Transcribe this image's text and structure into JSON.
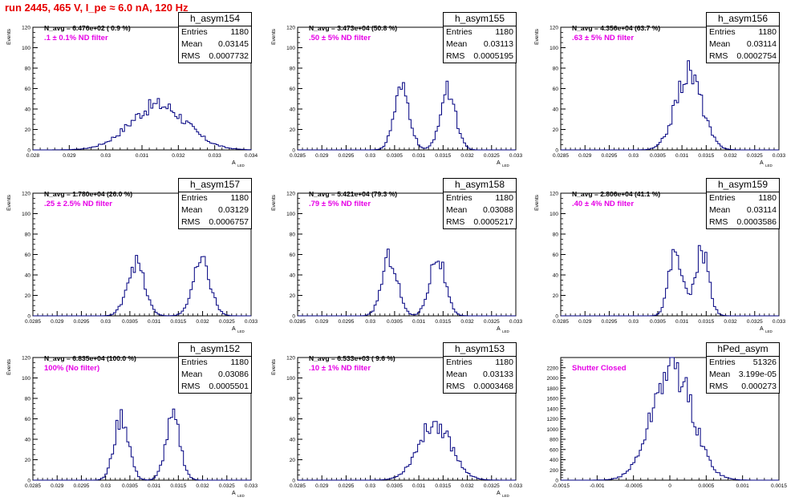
{
  "page_title": "run 2445,   465 V, I_pe ≈ 6.0 nA, 120 Hz",
  "colors": {
    "title": "#e60000",
    "line": "#000080",
    "annotation": "#e600e6",
    "axis": "#000000"
  },
  "chart_data": [
    {
      "type": "histogram",
      "name": "h_asym154",
      "stats": {
        "Entries": "1180",
        "Mean": "0.03145",
        "RMS": "0.0007732"
      },
      "n_avg_label": "N_avg = 6.476e+02 ( 0.9 %)",
      "filter_label": ".1 ± 0.1% ND filter",
      "xlabel": "A",
      "xlabel_sub": "LED",
      "ylabel": "Events",
      "xlim": [
        0.028,
        0.034
      ],
      "ylim": [
        0,
        120
      ],
      "xticks": [
        0.028,
        0.029,
        0.03,
        0.031,
        0.032,
        0.033,
        0.034
      ],
      "xtick_labels": [
        "0.028",
        "0.029",
        "0.03",
        "0.031",
        "0.032",
        "0.033",
        "0.034"
      ],
      "yticks": [
        0,
        20,
        40,
        60,
        80,
        100,
        120
      ],
      "ytick_labels": [
        "0",
        "20",
        "40",
        "60",
        "80",
        "100",
        "120"
      ],
      "peaks": [
        {
          "mean": 0.03145,
          "sigma": 0.00077,
          "height": 44
        }
      ]
    },
    {
      "type": "histogram",
      "name": "h_asym155",
      "stats": {
        "Entries": "1180",
        "Mean": "0.03113",
        "RMS": "0.0005195"
      },
      "n_avg_label": "N_avg = 3.473e+04 (50.8 %)",
      "filter_label": ".50 ± 5% ND filter",
      "xlabel": "A",
      "xlabel_sub": "LED",
      "ylabel": "Events",
      "xlim": [
        0.0285,
        0.033
      ],
      "ylim": [
        0,
        120
      ],
      "xticks": [
        0.0285,
        0.029,
        0.0295,
        0.03,
        0.0305,
        0.031,
        0.0315,
        0.032,
        0.0325,
        0.033
      ],
      "xtick_labels": [
        "0.0285",
        "0.029",
        "0.0295",
        "0.03",
        "0.0305",
        "0.031",
        "0.0315",
        "0.032",
        "0.0325",
        "0.033"
      ],
      "yticks": [
        0,
        20,
        40,
        60,
        80,
        100,
        120
      ],
      "ytick_labels": [
        "0",
        "20",
        "40",
        "60",
        "80",
        "100",
        "120"
      ],
      "peaks": [
        {
          "mean": 0.03065,
          "sigma": 0.00016,
          "height": 58
        },
        {
          "mean": 0.0316,
          "sigma": 0.00016,
          "height": 58
        }
      ]
    },
    {
      "type": "histogram",
      "name": "h_asym156",
      "stats": {
        "Entries": "1180",
        "Mean": "0.03114",
        "RMS": "0.0002754"
      },
      "n_avg_label": "N_avg = 4.356e+04 (63.7 %)",
      "filter_label": ".63 ± 5% ND filter",
      "xlabel": "A",
      "xlabel_sub": "LED",
      "ylabel": "Events",
      "xlim": [
        0.0285,
        0.033
      ],
      "ylim": [
        0,
        120
      ],
      "xticks": [
        0.0285,
        0.029,
        0.0295,
        0.03,
        0.0305,
        0.031,
        0.0315,
        0.032,
        0.0325,
        0.033
      ],
      "xtick_labels": [
        "0.0285",
        "0.029",
        "0.0295",
        "0.03",
        "0.0305",
        "0.031",
        "0.0315",
        "0.032",
        "0.0325",
        "0.033"
      ],
      "yticks": [
        0,
        20,
        40,
        60,
        80,
        100,
        120
      ],
      "ytick_labels": [
        "0",
        "20",
        "40",
        "60",
        "80",
        "100",
        "120"
      ],
      "peaks": [
        {
          "mean": 0.03114,
          "sigma": 0.00027,
          "height": 76
        }
      ]
    },
    {
      "type": "histogram",
      "name": "h_asym157",
      "stats": {
        "Entries": "1180",
        "Mean": "0.03129",
        "RMS": "0.0006757"
      },
      "n_avg_label": "N_avg = 1.780e+04 (26.0 %)",
      "filter_label": ".25 ± 2.5% ND filter",
      "xlabel": "A",
      "xlabel_sub": "LED",
      "ylabel": "Events",
      "xlim": [
        0.0285,
        0.033
      ],
      "ylim": [
        0,
        120
      ],
      "xticks": [
        0.0285,
        0.029,
        0.0295,
        0.03,
        0.0305,
        0.031,
        0.0315,
        0.032,
        0.0325,
        0.033
      ],
      "xtick_labels": [
        "0.0285",
        "0.029",
        "0.0295",
        "0.03",
        "0.0305",
        "0.031",
        "0.0315",
        "0.032",
        "0.0325",
        "0.033"
      ],
      "yticks": [
        0,
        20,
        40,
        60,
        80,
        100,
        120
      ],
      "ytick_labels": [
        "0",
        "20",
        "40",
        "60",
        "80",
        "100",
        "120"
      ],
      "peaks": [
        {
          "mean": 0.03062,
          "sigma": 0.00018,
          "height": 52
        },
        {
          "mean": 0.03198,
          "sigma": 0.00018,
          "height": 52
        }
      ]
    },
    {
      "type": "histogram",
      "name": "h_asym158",
      "stats": {
        "Entries": "1180",
        "Mean": "0.03088",
        "RMS": "0.0005217"
      },
      "n_avg_label": "N_avg = 5.421e+04 (79.3 %)",
      "filter_label": ".79 ± 5% ND filter",
      "xlabel": "A",
      "xlabel_sub": "LED",
      "ylabel": "Events",
      "xlim": [
        0.0285,
        0.033
      ],
      "ylim": [
        0,
        120
      ],
      "xticks": [
        0.0285,
        0.029,
        0.0295,
        0.03,
        0.0305,
        0.031,
        0.0315,
        0.032,
        0.0325,
        0.033
      ],
      "xtick_labels": [
        "0.0285",
        "0.029",
        "0.0295",
        "0.03",
        "0.0305",
        "0.031",
        "0.0315",
        "0.032",
        "0.0325",
        "0.033"
      ],
      "yticks": [
        0,
        20,
        40,
        60,
        80,
        100,
        120
      ],
      "ytick_labels": [
        "0",
        "20",
        "40",
        "60",
        "80",
        "100",
        "120"
      ],
      "peaks": [
        {
          "mean": 0.0304,
          "sigma": 0.00016,
          "height": 58
        },
        {
          "mean": 0.03138,
          "sigma": 0.00016,
          "height": 58
        }
      ]
    },
    {
      "type": "histogram",
      "name": "h_asym159",
      "stats": {
        "Entries": "1180",
        "Mean": "0.03114",
        "RMS": "0.0003586"
      },
      "n_avg_label": "N_avg = 2.806e+04 (41.1 %)",
      "filter_label": ".40 ± 4% ND filter",
      "xlabel": "A",
      "xlabel_sub": "LED",
      "ylabel": "Events",
      "xlim": [
        0.0285,
        0.033
      ],
      "ylim": [
        0,
        120
      ],
      "xticks": [
        0.0285,
        0.029,
        0.0295,
        0.03,
        0.0305,
        0.031,
        0.0315,
        0.032,
        0.0325,
        0.033
      ],
      "xtick_labels": [
        "0.0285",
        "0.029",
        "0.0295",
        "0.03",
        "0.0305",
        "0.031",
        "0.0315",
        "0.032",
        "0.0325",
        "0.033"
      ],
      "yticks": [
        0,
        20,
        40,
        60,
        80,
        100,
        120
      ],
      "ytick_labels": [
        "0",
        "20",
        "40",
        "60",
        "80",
        "100",
        "120"
      ],
      "peaks": [
        {
          "mean": 0.03087,
          "sigma": 0.00014,
          "height": 64
        },
        {
          "mean": 0.03141,
          "sigma": 0.00014,
          "height": 64
        }
      ]
    },
    {
      "type": "histogram",
      "name": "h_asym152",
      "stats": {
        "Entries": "1180",
        "Mean": "0.03086",
        "RMS": "0.0005501"
      },
      "n_avg_label": "N_avg = 6.835e+04 (100.0 %)",
      "filter_label": "100% (No filter)",
      "xlabel": "A",
      "xlabel_sub": "LED",
      "ylabel": "Events",
      "xlim": [
        0.0285,
        0.033
      ],
      "ylim": [
        0,
        120
      ],
      "xticks": [
        0.0285,
        0.029,
        0.0295,
        0.03,
        0.0305,
        0.031,
        0.0315,
        0.032,
        0.0325,
        0.033
      ],
      "xtick_labels": [
        "0.0285",
        "0.029",
        "0.0295",
        "0.03",
        "0.0305",
        "0.031",
        "0.0315",
        "0.032",
        "0.0325",
        "0.033"
      ],
      "yticks": [
        0,
        20,
        40,
        60,
        80,
        100,
        120
      ],
      "ytick_labels": [
        "0",
        "20",
        "40",
        "60",
        "80",
        "100",
        "120"
      ],
      "peaks": [
        {
          "mean": 0.03033,
          "sigma": 0.00015,
          "height": 62
        },
        {
          "mean": 0.03139,
          "sigma": 0.00015,
          "height": 60
        }
      ]
    },
    {
      "type": "histogram",
      "name": "h_asym153",
      "stats": {
        "Entries": "1180",
        "Mean": "0.03133",
        "RMS": "0.0003468"
      },
      "n_avg_label": "N_avg = 6.533e+03 ( 9.6 %)",
      "filter_label": ".10 ± 1% ND filter",
      "xlabel": "A",
      "xlabel_sub": "LED",
      "ylabel": "Events",
      "xlim": [
        0.0285,
        0.033
      ],
      "ylim": [
        0,
        120
      ],
      "xticks": [
        0.0285,
        0.029,
        0.0295,
        0.03,
        0.0305,
        0.031,
        0.0315,
        0.032,
        0.0325,
        0.033
      ],
      "xtick_labels": [
        "0.0285",
        "0.029",
        "0.0295",
        "0.03",
        "0.0305",
        "0.031",
        "0.0315",
        "0.032",
        "0.0325",
        "0.033"
      ],
      "yticks": [
        0,
        20,
        40,
        60,
        80,
        100,
        120
      ],
      "ytick_labels": [
        "0",
        "20",
        "40",
        "60",
        "80",
        "100",
        "120"
      ],
      "peaks": [
        {
          "mean": 0.03133,
          "sigma": 0.00034,
          "height": 56
        }
      ]
    },
    {
      "type": "histogram",
      "name": "hPed_asym",
      "stats": {
        "Entries": "51326",
        "Mean": "3.199e-05",
        "RMS": "0.000273"
      },
      "n_avg_label": "",
      "filter_label": "Shutter Closed",
      "xlabel": "",
      "xlabel_sub": "",
      "ylabel": "",
      "xlim": [
        -0.0015,
        0.0015
      ],
      "ylim": [
        0,
        2400
      ],
      "xticks": [
        -0.0015,
        -0.001,
        -0.0005,
        0,
        0.0005,
        0.001,
        0.0015
      ],
      "xtick_labels": [
        "-0.0015",
        "-0.001",
        "-0.0005",
        "0",
        "0.0005",
        "0.001",
        "0.0015"
      ],
      "yticks": [
        0,
        200,
        400,
        600,
        800,
        1000,
        1200,
        1400,
        1600,
        1800,
        2000,
        2200
      ],
      "ytick_labels": [
        "0",
        "200",
        "400",
        "600",
        "800",
        "1000",
        "1200",
        "1400",
        "1600",
        "1800",
        "2000",
        "2200"
      ],
      "peaks": [
        {
          "mean": 3.2e-05,
          "sigma": 0.000273,
          "height": 2230
        }
      ]
    }
  ]
}
